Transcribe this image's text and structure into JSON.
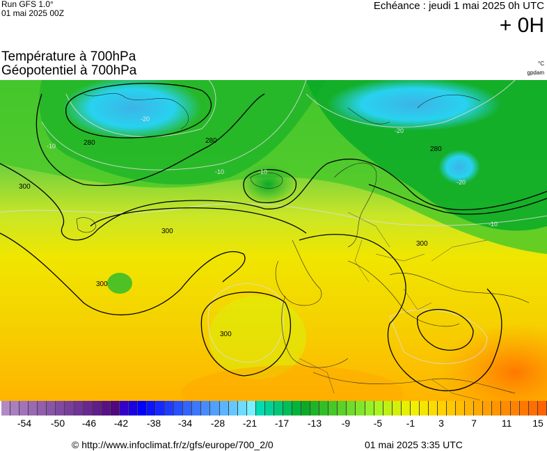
{
  "header": {
    "run": "Run GFS 1.0°",
    "run_date": "01 mai 2025 00Z",
    "echeance": "Echéance : jeudi 1 mai 2025 0h UTC",
    "lead": "+ 0H",
    "title_temp": "Température à 700hPa",
    "title_geo": "Géopotentiel à 700hPa",
    "unit_temp": "°C",
    "unit_geo": "gpdam"
  },
  "map": {
    "contour_labels": [
      "280",
      "280",
      "280",
      "300",
      "300",
      "300",
      "300",
      "300"
    ],
    "isotherm_labels": [
      "-20",
      "-20",
      "-20",
      "-10",
      "-10",
      "-10",
      "-10"
    ]
  },
  "colorbar": {
    "colors": [
      "#b08ac4",
      "#a97fbf",
      "#a174b9",
      "#9969b3",
      "#915fad",
      "#8955a8",
      "#8149a2",
      "#793e9c",
      "#713397",
      "#692891",
      "#611d8b",
      "#591285",
      "#500780",
      "#3300cc",
      "#1a00e6",
      "#0000ff",
      "#0a14ff",
      "#1428ff",
      "#1e3cff",
      "#2850ff",
      "#3264ff",
      "#3c78ff",
      "#468cff",
      "#50a0ff",
      "#5ab4ff",
      "#64c8ff",
      "#6edcff",
      "#78f0ff",
      "#00dcb4",
      "#00d296",
      "#00c878",
      "#00be5a",
      "#00b43c",
      "#0aaa28",
      "#1eb428",
      "#32be28",
      "#46c828",
      "#5ad228",
      "#6edc28",
      "#82e628",
      "#96f028",
      "#aaf51e",
      "#bef014",
      "#d2f00a",
      "#e6f000",
      "#f0f000",
      "#f5e600",
      "#fadc00",
      "#ffd200",
      "#ffc800",
      "#ffbe00",
      "#ffb400",
      "#ffaa00",
      "#ffa000",
      "#ff9600",
      "#ff8c00",
      "#ff8200",
      "#ff7800",
      "#ff6e00",
      "#ff6400"
    ],
    "ticks": [
      "-54",
      "-50",
      "-46",
      "-42",
      "-38",
      "-34",
      "-28",
      "-21",
      "-17",
      "-13",
      "-9",
      "-5",
      "-1",
      "3",
      "7",
      "11",
      "15"
    ]
  },
  "footer": {
    "copyright": "© http://www.infoclimat.fr/z/gfs/europe/700_2/0",
    "timestamp": "01 mai 2025  3:35 UTC"
  }
}
